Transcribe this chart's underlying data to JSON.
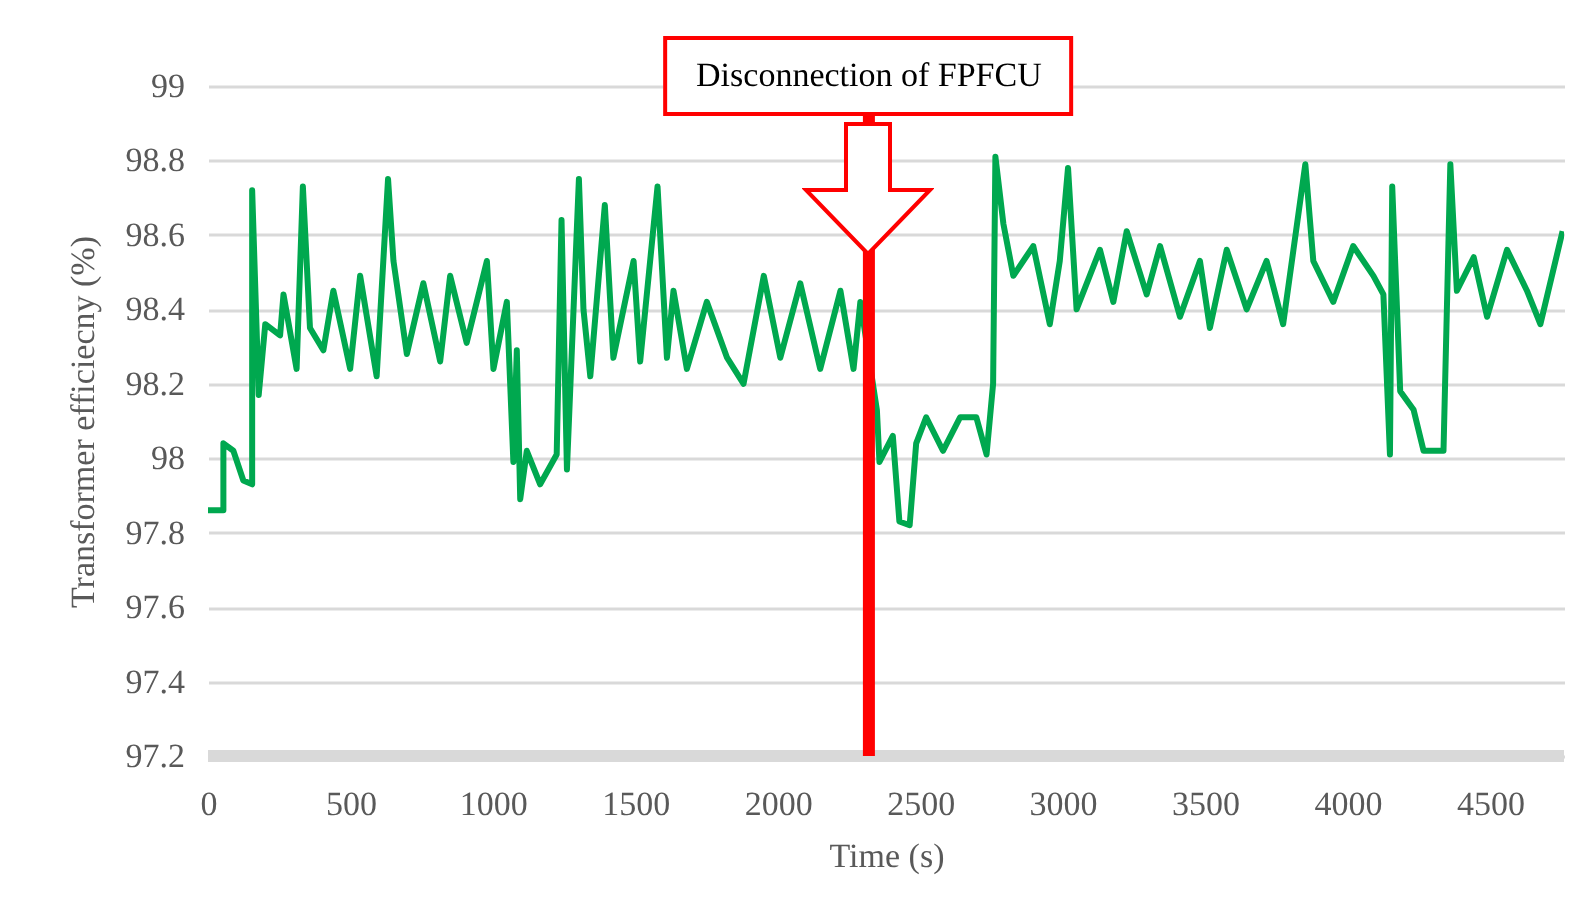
{
  "chart_data": {
    "type": "line",
    "xlabel": "Time (s)",
    "ylabel": "Transformer efficiecny (%)",
    "xlim": [
      0,
      4760
    ],
    "xticks": [
      0,
      500,
      1000,
      1500,
      2000,
      2500,
      3000,
      3500,
      4000,
      4500
    ],
    "ylim": [
      97.2,
      99
    ],
    "yticks": [
      97.2,
      97.4,
      97.6,
      97.8,
      98,
      98.2,
      98.4,
      98.6,
      98.8,
      99
    ],
    "grid": "y",
    "marker": "none",
    "line_style": "solid",
    "ref_lines": [
      {
        "axis": "x",
        "value": 2320,
        "label": "Disconnection of FPFCU",
        "color": "#ff0000"
      }
    ],
    "series": [
      {
        "color": "#00a84f",
        "x": [
          0,
          54,
          54,
          89,
          124,
          155,
          155,
          178,
          201,
          253,
          265,
          311,
          333,
          358,
          405,
          440,
          499,
          534,
          592,
          632,
          651,
          698,
          756,
          815,
          850,
          908,
          979,
          1002,
          1049,
          1072,
          1084,
          1096,
          1119,
          1166,
          1224,
          1241,
          1260,
          1302,
          1318,
          1342,
          1393,
          1423,
          1494,
          1517,
          1578,
          1611,
          1634,
          1681,
          1751,
          1822,
          1880,
          1951,
          2009,
          2079,
          2149,
          2220,
          2266,
          2290,
          2348,
          2357,
          2404,
          2427,
          2463,
          2486,
          2521,
          2580,
          2640,
          2697,
          2733,
          2756,
          2764,
          2792,
          2827,
          2897,
          2955,
          2990,
          3019,
          3049,
          3131,
          3178,
          3225,
          3295,
          3342,
          3412,
          3482,
          3517,
          3576,
          3646,
          3716,
          3774,
          3852,
          3880,
          3950,
          4020,
          4091,
          4126,
          4149,
          4157,
          4185,
          4232,
          4267,
          4337,
          4361,
          4384,
          4443,
          4490,
          4560,
          4630,
          4677,
          4755
        ],
        "values": [
          97.86,
          97.86,
          98.04,
          98.02,
          97.94,
          97.93,
          98.72,
          98.17,
          98.36,
          98.33,
          98.44,
          98.24,
          98.73,
          98.35,
          98.29,
          98.45,
          98.24,
          98.49,
          98.22,
          98.75,
          98.53,
          98.28,
          98.47,
          98.26,
          98.49,
          98.31,
          98.53,
          98.24,
          98.42,
          97.99,
          98.29,
          97.89,
          98.02,
          97.93,
          98.01,
          98.64,
          97.97,
          98.75,
          98.4,
          98.22,
          98.68,
          98.27,
          98.53,
          98.26,
          98.73,
          98.27,
          98.45,
          98.24,
          98.42,
          98.27,
          98.2,
          98.49,
          98.27,
          98.47,
          98.24,
          98.45,
          98.24,
          98.42,
          98.13,
          97.99,
          98.06,
          97.83,
          97.82,
          98.04,
          98.11,
          98.02,
          98.11,
          98.11,
          98.01,
          98.2,
          98.81,
          98.63,
          98.49,
          98.57,
          98.36,
          98.53,
          98.78,
          98.4,
          98.56,
          98.42,
          98.61,
          98.44,
          98.57,
          98.38,
          98.53,
          98.35,
          98.56,
          98.4,
          98.53,
          98.36,
          98.79,
          98.53,
          98.42,
          98.57,
          98.49,
          98.44,
          98.01,
          98.73,
          98.18,
          98.13,
          98.02,
          98.02,
          98.79,
          98.45,
          98.54,
          98.38,
          98.56,
          98.45,
          98.36,
          98.61
        ]
      }
    ]
  }
}
